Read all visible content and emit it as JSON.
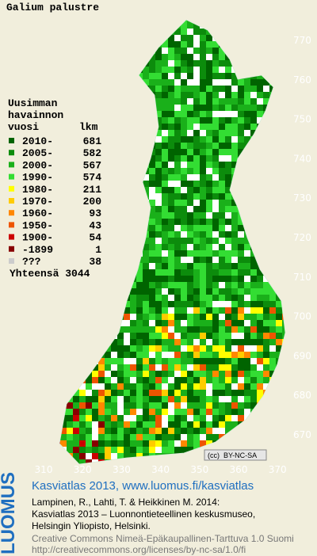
{
  "map": {
    "title": "Galium palustre",
    "legend": {
      "header": [
        "Uusimman",
        "havainnon",
        "vuosi"
      ],
      "count_header": "lkm",
      "rows": [
        {
          "label": "2010-",
          "count": "681",
          "color": "#006400"
        },
        {
          "label": "2005-",
          "count": "582",
          "color": "#0c8c0c"
        },
        {
          "label": "2000-",
          "count": "567",
          "color": "#1ab01a"
        },
        {
          "label": "1990-",
          "count": "574",
          "color": "#33dd33"
        },
        {
          "label": "1980-",
          "count": "211",
          "color": "#ffff00"
        },
        {
          "label": "1970-",
          "count": "200",
          "color": "#ffcc00"
        },
        {
          "label": "1960-",
          "count": "93",
          "color": "#ff8800"
        },
        {
          "label": "1950-",
          "count": "43",
          "color": "#ee5500"
        },
        {
          "label": "1900-",
          "count": "54",
          "color": "#cc0000"
        },
        {
          "label": "-1899",
          "count": "1",
          "color": "#880000"
        },
        {
          "label": "???",
          "count": "38",
          "color": "#cccccc"
        }
      ],
      "total": "Yhteensä 3044"
    },
    "y_labels": [
      "770",
      "760",
      "750",
      "740",
      "730",
      "720",
      "710",
      "700",
      "690",
      "680",
      "670"
    ],
    "x_labels": [
      "310",
      "320",
      "330",
      "340",
      "350",
      "360",
      "370"
    ],
    "license_badge": [
      "(cc)",
      "BY-NC-SA"
    ],
    "footer": {
      "brand": "LUOMUS",
      "headline": "Kasviatlas 2013, www.luomus.fi/kasviatlas",
      "citation": [
        "Lampinen, R., Lahti, T. & Heikkinen M. 2014:",
        "Kasviatlas 2013 – Luonnontieteellinen keskusmuseo,",
        "Helsingin Yliopisto, Helsinki."
      ],
      "license": [
        "Creative Commons Nimeä-Epäkaupallinen-Tarttuva 1.0 Suomi",
        "http://creativecommons.org/licenses/by-nc-sa/1.0/fi"
      ]
    }
  }
}
